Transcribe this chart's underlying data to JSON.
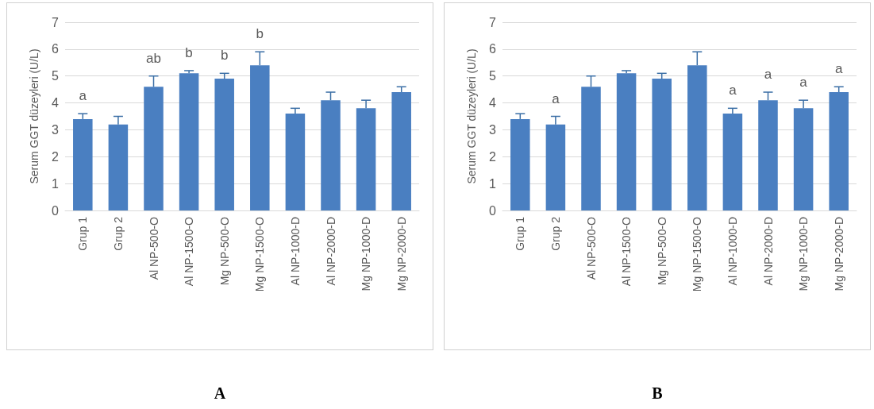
{
  "chart_data": [
    {
      "type": "bar",
      "ylabel": "Serum GGT düzeyleri (U/L)",
      "categories": [
        "Grup 1",
        "Grup 2",
        "Al NP-500-O",
        "Al NP-1500-O",
        "Mg NP-500-O",
        "Mg NP-1500-O",
        "Al NP-1000-D",
        "Al NP-2000-D",
        "Mg NP-1000-D",
        "Mg NP-2000-D"
      ],
      "values": [
        3.4,
        3.2,
        4.6,
        5.1,
        4.9,
        5.4,
        3.6,
        4.1,
        3.8,
        4.4
      ],
      "errors": [
        0.2,
        0.3,
        0.4,
        0.1,
        0.2,
        0.5,
        0.2,
        0.3,
        0.3,
        0.2
      ],
      "color": "#4a7fc1",
      "ylim": [
        0,
        7
      ],
      "yticks": [
        0,
        1,
        2,
        3,
        4,
        5,
        6,
        7
      ],
      "grid": "y",
      "annotations": [
        {
          "text": "a",
          "x": "Grup 1",
          "y": 3.4
        },
        {
          "text": "ab",
          "x": "Al NP-500-O",
          "y": 4.6
        },
        {
          "text": "b",
          "x": "Al NP-1500-O",
          "y": 5.1
        },
        {
          "text": "b",
          "x": "Mg NP-500-O",
          "y": 4.9
        },
        {
          "text": "b",
          "x": "Mg NP-1500-O",
          "y": 5.4
        },
        "A"
      ]
    },
    {
      "type": "bar",
      "ylabel": "Serum GGT düzeyleri (U/L)",
      "categories": [
        "Grup 1",
        "Grup 2",
        "Al NP-500-O",
        "Al NP-1500-O",
        "Mg NP-500-O",
        "Mg NP-1500-O",
        "Al NP-1000-D",
        "Al NP-2000-D",
        "Mg NP-1000-D",
        "Mg NP-2000-D"
      ],
      "values": [
        3.4,
        3.2,
        4.6,
        5.1,
        4.9,
        5.4,
        3.6,
        4.1,
        3.8,
        4.4
      ],
      "errors": [
        0.2,
        0.3,
        0.4,
        0.1,
        0.2,
        0.5,
        0.2,
        0.3,
        0.3,
        0.2
      ],
      "color": "#4a7fc1",
      "ylim": [
        0,
        7
      ],
      "yticks": [
        0,
        1,
        2,
        3,
        4,
        5,
        6,
        7
      ],
      "grid": "y",
      "annotations": [
        {
          "text": "a",
          "x": "Grup 2",
          "y": 3.2
        },
        {
          "text": "a",
          "x": "Al NP-1000-D",
          "y": 3.6
        },
        {
          "text": "a",
          "x": "Al NP-2000-D",
          "y": 4.1
        },
        {
          "text": "a",
          "x": "Mg NP-1000-D",
          "y": 3.8
        },
        {
          "text": "a",
          "x": "Mg NP-2000-D",
          "y": 4.4
        },
        "B"
      ]
    }
  ]
}
